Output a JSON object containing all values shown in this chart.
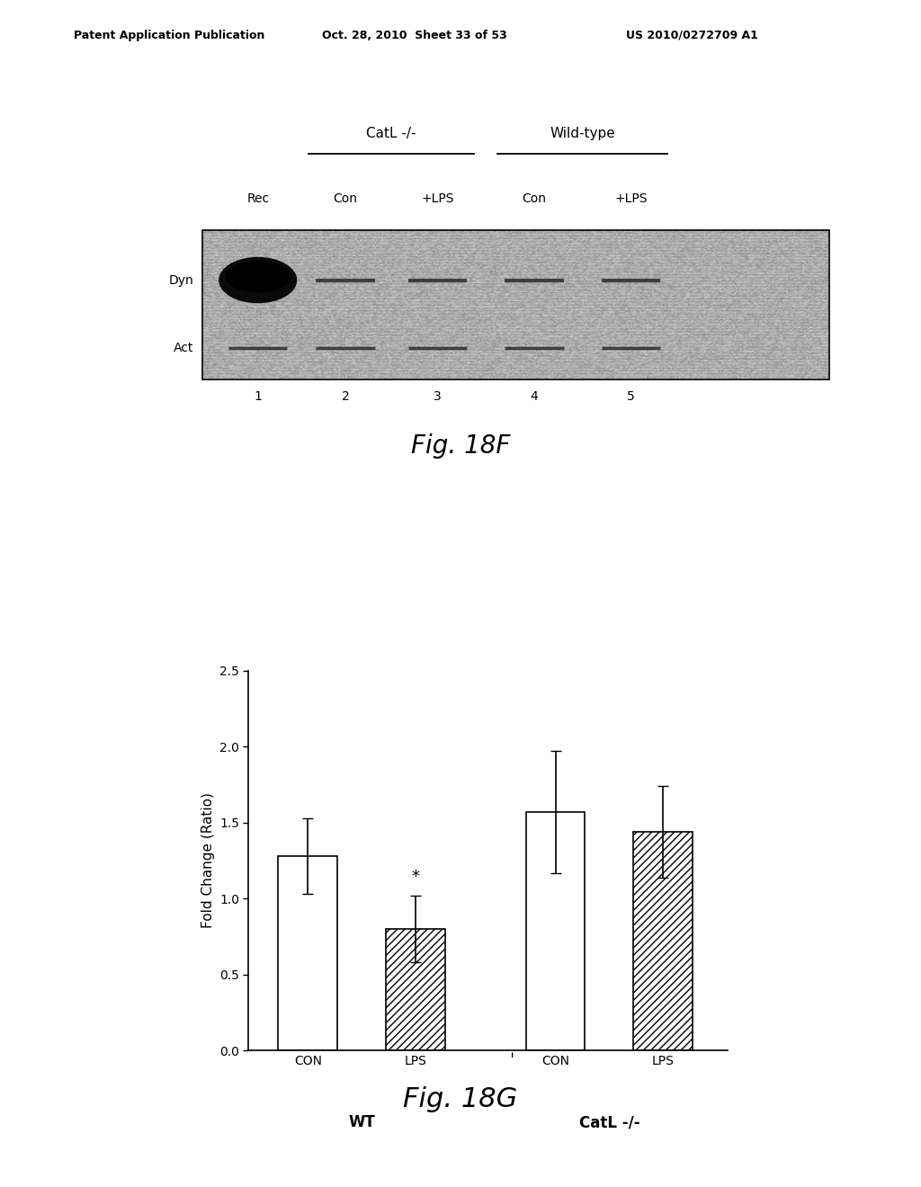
{
  "header_left": "Patent Application Publication",
  "header_mid": "Oct. 28, 2010  Sheet 33 of 53",
  "header_right": "US 2010/0272709 A1",
  "header_fontsize": 9,
  "blot_title_catl": "CatL -/-",
  "blot_title_wt": "Wild-type",
  "blot_col_labels": [
    "Rec",
    "Con",
    "+LPS",
    "Con",
    "+LPS"
  ],
  "blot_col_numbers": [
    "1",
    "2",
    "3",
    "4",
    "5"
  ],
  "blot_row_labels": [
    "Dyn",
    "Act"
  ],
  "fig18f_label": "Fig. 18F",
  "bar_values": [
    1.28,
    0.8,
    1.57,
    1.44
  ],
  "bar_errors": [
    0.25,
    0.22,
    0.4,
    0.3
  ],
  "bar_labels": [
    "CON",
    "LPS",
    "CON",
    "LPS"
  ],
  "group_labels": [
    "WT",
    "CatL -/-"
  ],
  "ylabel": "Fold Change (Ratio)",
  "ylim": [
    0,
    2.5
  ],
  "yticks": [
    0,
    0.5,
    1,
    1.5,
    2,
    2.5
  ],
  "fig18g_label": "Fig. 18G",
  "bar_face_colors": [
    "white",
    "none",
    "white",
    "none"
  ],
  "bar_edge_colors": [
    "black",
    "black",
    "black",
    "black"
  ],
  "hatch_patterns": [
    "",
    "////",
    "",
    "////"
  ],
  "bar_width": 0.55,
  "background_color": "#ffffff",
  "text_color": "#000000"
}
